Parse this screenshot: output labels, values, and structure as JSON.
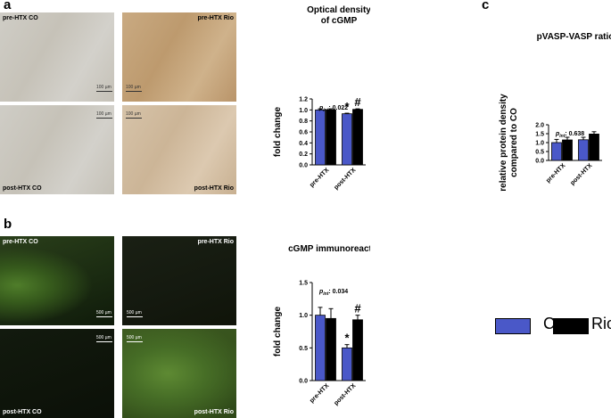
{
  "panels": {
    "a": "a",
    "b": "b",
    "c": "c"
  },
  "images_a": [
    {
      "corner_label": "pre-HTX CO",
      "corner": "tl",
      "scale": "100 µm"
    },
    {
      "corner_label": "pre-HTX Rio",
      "corner": "tr",
      "scale": "100 µm"
    },
    {
      "corner_label": "post-HTX CO",
      "corner": "bl",
      "scale": "100 µm"
    },
    {
      "corner_label": "post-HTX Rio",
      "corner": "br",
      "scale": "100 µm"
    }
  ],
  "images_b": [
    {
      "corner_label": "pre-HTX CO",
      "corner": "tl",
      "scale": "500 µm"
    },
    {
      "corner_label": "pre-HTX Rio",
      "corner": "tr",
      "scale": "500 µm"
    },
    {
      "corner_label": "post-HTX CO",
      "corner": "bl",
      "scale": "500 µm"
    },
    {
      "corner_label": "post-HTX Rio",
      "corner": "br",
      "scale": "500 µm"
    }
  ],
  "legend": {
    "co_label": "Co",
    "rio_label": "Rio",
    "co_color": "#4a58c8",
    "rio_color": "#000000"
  },
  "chart_data": [
    {
      "id": "a",
      "type": "bar",
      "title": "Optical density\nof cGMP",
      "ylabel": "fold change",
      "categories": [
        "pre-HTX",
        "post-HTX"
      ],
      "ylim": [
        0,
        1.2
      ],
      "yticks": [
        "0.0",
        "0.2",
        "0.4",
        "0.6",
        "0.8",
        "1.0",
        "1.2"
      ],
      "series": [
        {
          "name": "Co",
          "color": "#4a58c8",
          "values": [
            1.0,
            0.93
          ],
          "errors": [
            0.02,
            0.01
          ]
        },
        {
          "name": "Rio",
          "color": "#000000",
          "values": [
            1.0,
            1.01
          ],
          "errors": [
            0.02,
            0.01
          ]
        }
      ],
      "annotation": "p",
      "annotation_sub": "int",
      "annotation_value": ": 0.022",
      "markers": [
        {
          "category": 1,
          "series": 0,
          "text": "*"
        },
        {
          "category": 1,
          "series": 1,
          "text": "#"
        }
      ]
    },
    {
      "id": "b",
      "type": "bar",
      "title": "cGMP immunoreactivity",
      "ylabel": "fold change",
      "categories": [
        "pre-HTX",
        "post-HTX"
      ],
      "ylim": [
        0,
        1.5
      ],
      "yticks": [
        "0.0",
        "0.5",
        "1.0",
        "1.5"
      ],
      "series": [
        {
          "name": "Co",
          "color": "#4a58c8",
          "values": [
            1.0,
            0.5
          ],
          "errors": [
            0.12,
            0.05
          ]
        },
        {
          "name": "Rio",
          "color": "#000000",
          "values": [
            0.95,
            0.93
          ],
          "errors": [
            0.15,
            0.07
          ]
        }
      ],
      "annotation": "p",
      "annotation_sub": "int",
      "annotation_value": ": 0.034",
      "markers": [
        {
          "category": 1,
          "series": 0,
          "text": "*"
        },
        {
          "category": 1,
          "series": 1,
          "text": "#"
        }
      ]
    },
    {
      "id": "c",
      "type": "bar",
      "title": "pVASP-VASP ratio",
      "ylabel": "relative protein density\ncompared to CO",
      "categories": [
        "pre-HTX",
        "post-HTX"
      ],
      "ylim": [
        0,
        2.0
      ],
      "yticks": [
        "0.0",
        "0.5",
        "1.0",
        "1.5",
        "2.0"
      ],
      "series": [
        {
          "name": "Co",
          "color": "#4a58c8",
          "values": [
            1.0,
            1.16
          ],
          "errors": [
            0.18,
            0.14
          ]
        },
        {
          "name": "Rio",
          "color": "#000000",
          "values": [
            1.15,
            1.48
          ],
          "errors": [
            0.15,
            0.13
          ]
        }
      ],
      "annotation": "p",
      "annotation_sub": "int",
      "annotation_value": ": 0.638",
      "markers": []
    }
  ]
}
